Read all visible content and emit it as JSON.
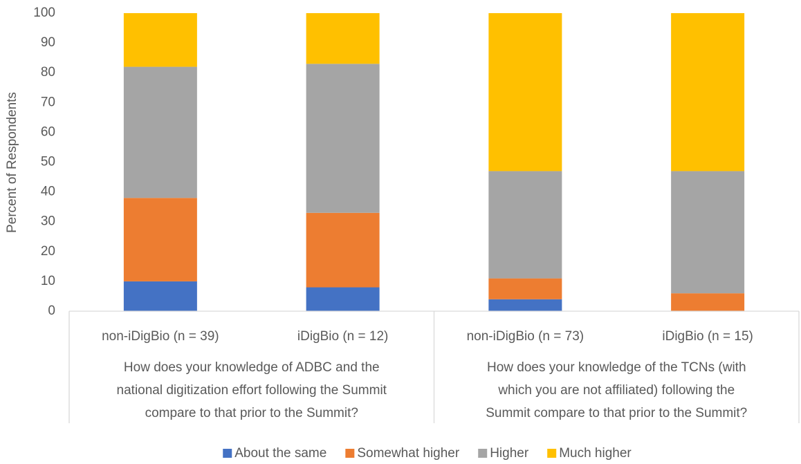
{
  "chart_data": {
    "type": "stacked_bar",
    "y_axis_label": "Percent of Respondents",
    "categories": [
      "non-iDigBio (n = 39)",
      "iDigBio (n = 12)",
      "non-iDigBio (n = 73)",
      "iDigBio (n = 15)"
    ],
    "groups": [
      {
        "label_lines": [
          "How does your knowledge of ADBC and the",
          "national digitization effort following the Summit",
          "compare to that prior to the Summit?"
        ]
      },
      {
        "label_lines": [
          "How does your knowledge of the TCNs (with",
          "which you are not affiliated) following the",
          "Summit compare to that prior to the Summit?"
        ]
      }
    ],
    "series": [
      {
        "name": "About the same",
        "color": "#4472c4",
        "values": [
          10,
          8,
          4,
          0
        ]
      },
      {
        "name": "Somewhat higher",
        "color": "#ed7d31",
        "values": [
          28,
          25,
          7,
          6
        ]
      },
      {
        "name": "Higher",
        "color": "#a5a5a5",
        "values": [
          44,
          50,
          36,
          41
        ]
      },
      {
        "name": "Much higher",
        "color": "#ffc000",
        "values": [
          18,
          17,
          53,
          53
        ]
      }
    ],
    "ylim": [
      0,
      100
    ],
    "yticks": [
      0,
      10,
      20,
      30,
      40,
      50,
      60,
      70,
      80,
      90,
      100
    ],
    "legend": "bottom"
  }
}
